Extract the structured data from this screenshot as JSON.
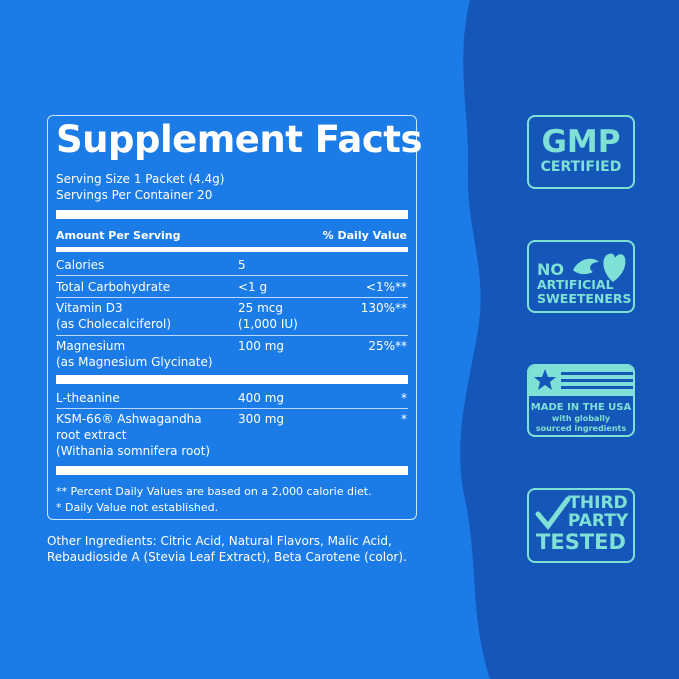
{
  "facts": {
    "title": "Supplement Facts",
    "serving_size": "Serving Size 1 Packet (4.4g)",
    "servings_per_container": "Servings Per Container 20",
    "amount_header": "Amount Per Serving",
    "dv_header": "% Daily Value",
    "rows": [
      {
        "name": "Calories",
        "amount": "5",
        "dv": ""
      },
      {
        "name": "Total Carbohydrate",
        "amount": "<1 g",
        "dv": "<1%**"
      },
      {
        "name": "Vitamin D3",
        "sub": "(as Cholecalciferol)",
        "amount": "25 mcg",
        "amount2": "(1,000 IU)",
        "dv": "130%**"
      },
      {
        "name": "Magnesium",
        "sub": "(as Magnesium Glycinate)",
        "amount": "100 mg",
        "dv": "25%**"
      },
      {
        "name": "L-theanine",
        "amount": "400 mg",
        "dv": "*"
      },
      {
        "name": "KSM-66® Ashwagandha",
        "sub": "root extract",
        "sub2": "(Withania somnifera root)",
        "amount": "300 mg",
        "dv": "*"
      }
    ],
    "footnote1": "** Percent Daily Values are based on a 2,000 calorie diet.",
    "footnote2": "* Daily Value not established."
  },
  "other_ingredients": "Other Ingredients: Citric Acid, Natural Flavors, Malic Acid, Rebaudioside A (Stevia Leaf Extract), Beta Carotene (color).",
  "badges": {
    "gmp": {
      "big": "GMP",
      "small": "CERTIFIED"
    },
    "sweet": {
      "l1": "NO",
      "l2": "ARTIFICIAL",
      "l3": "SWEETENERS"
    },
    "usa": {
      "l1": "MADE IN THE USA",
      "l2": "with globally",
      "l3": "sourced ingredients"
    },
    "third": {
      "l1": "THIRD",
      "l2": "PARTY",
      "l3": "TESTED"
    }
  },
  "colors": {
    "bg_left": "#1b7ce8",
    "bg_right": "#1556b9",
    "badge": "#7fe0d6"
  }
}
